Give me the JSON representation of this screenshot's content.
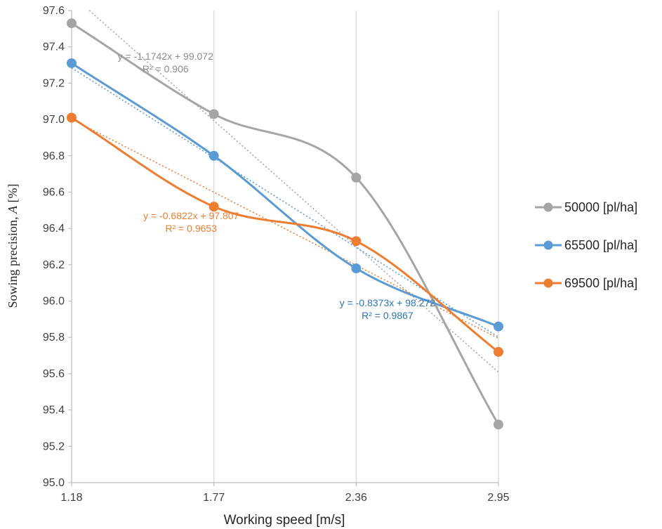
{
  "chart_data": {
    "type": "line",
    "x": [
      1.18,
      1.77,
      2.36,
      2.95
    ],
    "x_tick_labels": [
      "1.18",
      "1.77",
      "2.36",
      "2.95"
    ],
    "xlabel": "Working speed [m/s]",
    "ylabel_prefix": "Sowing precision, ",
    "ylabel_var": "A",
    "ylabel_suffix": " [%]",
    "ylim": [
      95.0,
      97.6
    ],
    "y_ticks": [
      "95.0",
      "95.2",
      "95.4",
      "95.6",
      "95.8",
      "96.0",
      "96.2",
      "96.4",
      "96.6",
      "96.8",
      "97.0",
      "97.2",
      "97.4",
      "97.6"
    ],
    "grid": "vertical",
    "legend_position": "right",
    "smooth_lines": true,
    "series": [
      {
        "name": "50000 [pl/ha]",
        "color": "#a5a5a5",
        "values": [
          97.53,
          97.03,
          96.68,
          95.32
        ],
        "trendline": {
          "slope": -1.1742,
          "intercept": 99.072,
          "equation": "y = -1.1742x + 99.072",
          "r2": "R² = 0.906",
          "label_color": "#8c8c8c"
        }
      },
      {
        "name": "65500 [pl/ha]",
        "color": "#5b9bd5",
        "values": [
          97.31,
          96.8,
          96.18,
          95.86
        ],
        "trendline": {
          "slope": -0.8373,
          "intercept": 98.272,
          "equation": "y = -0.8373x + 98.272",
          "r2": "R² = 0.9867",
          "label_color": "#2e75b6"
        }
      },
      {
        "name": "69500 [pl/ha]",
        "color": "#ed7d31",
        "values": [
          97.01,
          96.52,
          96.33,
          95.72
        ],
        "trendline": {
          "slope": -0.6822,
          "intercept": 97.807,
          "equation": "y = -0.6822x + 97.807",
          "r2": "R² = 0.9653",
          "label_color": "#ed7d31"
        }
      }
    ]
  }
}
